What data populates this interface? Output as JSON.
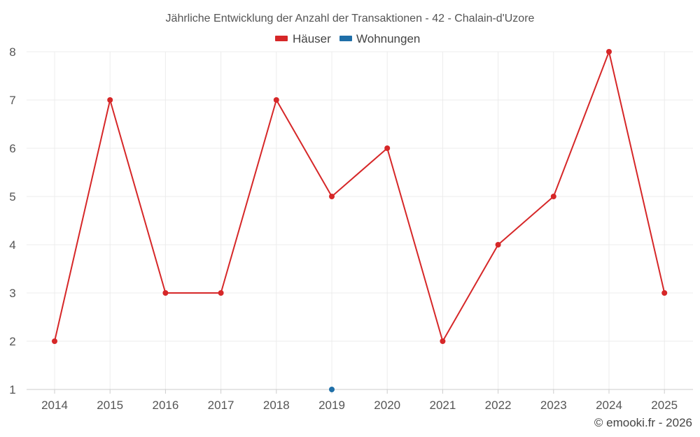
{
  "chart_data": {
    "type": "line",
    "title": "Jährliche Entwicklung der Anzahl der Transaktionen - 42 - Chalain-d'Uzore",
    "x": [
      "2014",
      "2015",
      "2016",
      "2017",
      "2018",
      "2019",
      "2020",
      "2021",
      "2022",
      "2023",
      "2024",
      "2025"
    ],
    "y_ticks": [
      "1",
      "2",
      "3",
      "4",
      "5",
      "6",
      "7",
      "8"
    ],
    "ylim": [
      1,
      8
    ],
    "grid": true,
    "legend_position": "top-center",
    "series": [
      {
        "name": "Häuser",
        "color": "#d62728",
        "values": [
          2,
          7,
          3,
          3,
          7,
          5,
          6,
          2,
          4,
          5,
          8,
          3
        ]
      },
      {
        "name": "Wohnungen",
        "color": "#1f6fa8",
        "values": [
          null,
          null,
          null,
          null,
          null,
          1,
          null,
          null,
          null,
          null,
          null,
          null
        ]
      }
    ],
    "credit": "© emooki.fr - 2026"
  }
}
